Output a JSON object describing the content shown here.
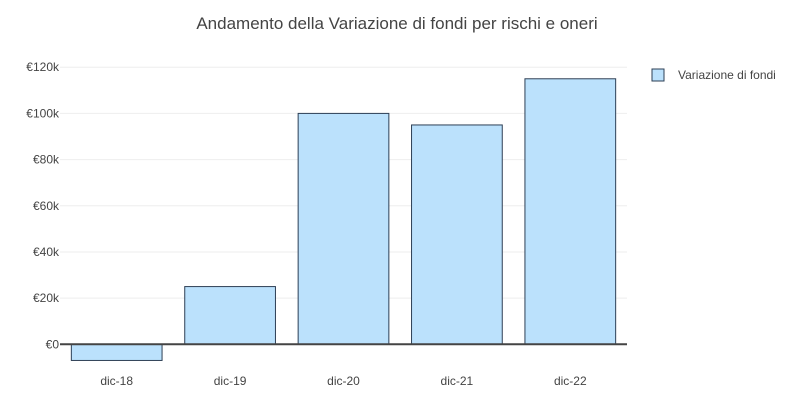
{
  "chart_data": {
    "type": "bar",
    "title": "Andamento della Variazione di fondi per rischi e oneri",
    "xlabel": "",
    "ylabel": "",
    "categories": [
      "dic-18",
      "dic-19",
      "dic-20",
      "dic-21",
      "dic-22"
    ],
    "series": [
      {
        "name": "Variazione di fondi",
        "values": [
          -7000,
          25000,
          100000,
          95000,
          115000
        ]
      }
    ],
    "ylim": [
      -12000,
      124000
    ],
    "yticks": [
      0,
      20000,
      40000,
      60000,
      80000,
      100000,
      120000
    ],
    "ytick_labels": [
      "€0",
      "€20k",
      "€40k",
      "€60k",
      "€80k",
      "€100k",
      "€120k"
    ],
    "grid": true,
    "legend_position": "top-right",
    "colors": {
      "bar_fill": "#bbe1fc",
      "bar_stroke": "#2d3f55",
      "grid": "#eeeeee",
      "zero_line": "#444444",
      "text": "#444444"
    }
  }
}
